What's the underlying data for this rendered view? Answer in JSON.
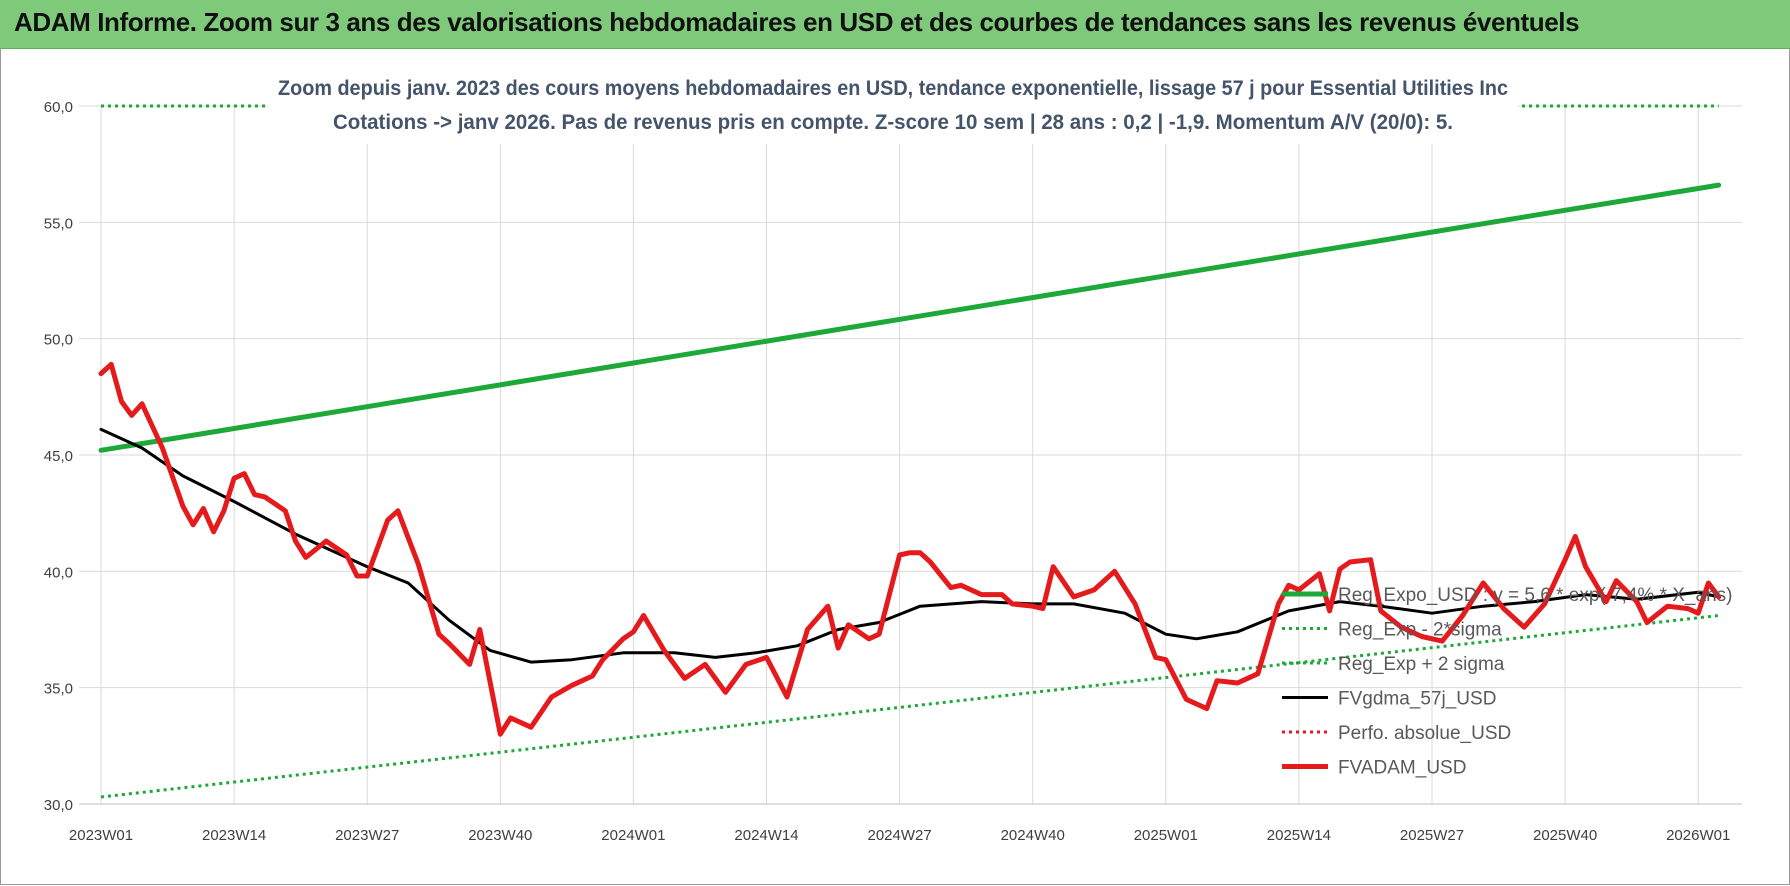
{
  "page_title": "ADAM Informe. Zoom sur 3 ans des valorisations hebdomadaires en USD et des courbes de tendances sans les revenus éventuels",
  "chart_data": {
    "type": "line",
    "title": "Zoom depuis janv. 2023 des cours moyens hebdomadaires en USD, tendance exponentielle, lissage 57 j pour Essential Utilities Inc",
    "subtitle": "Cotations -> janv 2026. Pas de revenus pris en compte. Z-score 10 sem | 28 ans : 0,2 | -1,9. Momentum A/V (20/0): 5.",
    "xlabel": "",
    "ylabel": "",
    "ylim": [
      30,
      60
    ],
    "y_ticks": [
      "30,0",
      "35,0",
      "40,0",
      "45,0",
      "50,0",
      "55,0",
      "60,0"
    ],
    "x_ticks": [
      "2023W01",
      "2023W14",
      "2023W27",
      "2023W40",
      "2024W01",
      "2024W14",
      "2024W27",
      "2024W40",
      "2025W01",
      "2025W14",
      "2025W27",
      "2025W40",
      "2026W01"
    ],
    "grid": "vertical and horizontal",
    "legend_position": "right",
    "series": [
      {
        "name": "Reg_Expo_USD : y = 5,6 * exp( 7,4% * X_ans)",
        "color": "#1fa83a",
        "style": "solid-thick",
        "x": [
          "2023W01",
          "2026W03"
        ],
        "values": [
          45.2,
          56.6
        ]
      },
      {
        "name": "Reg_Exp - 2*sigma",
        "color": "#1fa83a",
        "style": "dotted",
        "x": [
          "2023W01",
          "2026W03"
        ],
        "values": [
          30.3,
          38.1
        ]
      },
      {
        "name": "Reg_Exp + 2 sigma",
        "color": "#1fa83a",
        "style": "dotted",
        "x": [
          "2023W01",
          "2026W03"
        ],
        "values": [
          60.0,
          60.0
        ]
      },
      {
        "name": "FVgdma_57j_USD",
        "color": "#000000",
        "style": "solid",
        "x": [
          "2023W01",
          "2023W05",
          "2023W09",
          "2023W14",
          "2023W20",
          "2023W27",
          "2023W31",
          "2023W35",
          "2023W39",
          "2023W43",
          "2023W47",
          "2023W52",
          "2024W05",
          "2024W09",
          "2024W13",
          "2024W17",
          "2024W21",
          "2024W25",
          "2024W29",
          "2024W35",
          "2024W40",
          "2024W44",
          "2024W49",
          "2025W01",
          "2025W04",
          "2025W08",
          "2025W13",
          "2025W18",
          "2025W22",
          "2025W27",
          "2025W32",
          "2025W37",
          "2025W42",
          "2025W47",
          "2026W01",
          "2026W03"
        ],
        "values": [
          46.1,
          45.3,
          44.1,
          43.0,
          41.6,
          40.2,
          39.5,
          37.9,
          36.6,
          36.1,
          36.2,
          36.5,
          36.5,
          36.3,
          36.5,
          36.8,
          37.5,
          37.8,
          38.5,
          38.7,
          38.6,
          38.6,
          38.2,
          37.3,
          37.1,
          37.4,
          38.3,
          38.7,
          38.5,
          38.2,
          38.5,
          38.7,
          39.0,
          38.8,
          39.1,
          38.9
        ]
      },
      {
        "name": "Perfo. absolue_USD",
        "color": "#e41a1c",
        "style": "dotted",
        "x": [],
        "values": []
      },
      {
        "name": "FVADAM_USD",
        "color": "#e41a1c",
        "style": "solid-thick",
        "x": [
          "2023W01",
          "2023W02",
          "2023W03",
          "2023W04",
          "2023W05",
          "2023W07",
          "2023W09",
          "2023W10",
          "2023W11",
          "2023W12",
          "2023W13",
          "2023W14",
          "2023W15",
          "2023W16",
          "2023W17",
          "2023W19",
          "2023W20",
          "2023W21",
          "2023W23",
          "2023W25",
          "2023W26",
          "2023W27",
          "2023W29",
          "2023W30",
          "2023W32",
          "2023W34",
          "2023W35",
          "2023W37",
          "2023W38",
          "2023W40",
          "2023W41",
          "2023W43",
          "2023W45",
          "2023W47",
          "2023W49",
          "2023W50",
          "2023W52",
          "2024W01",
          "2024W02",
          "2024W04",
          "2024W06",
          "2024W08",
          "2024W10",
          "2024W12",
          "2024W14",
          "2024W16",
          "2024W18",
          "2024W20",
          "2024W21",
          "2024W22",
          "2024W24",
          "2024W25",
          "2024W27",
          "2024W28",
          "2024W29",
          "2024W30",
          "2024W32",
          "2024W33",
          "2024W35",
          "2024W37",
          "2024W38",
          "2024W40",
          "2024W41",
          "2024W42",
          "2024W44",
          "2024W46",
          "2024W48",
          "2024W50",
          "2024W52",
          "2025W01",
          "2025W03",
          "2025W05",
          "2025W06",
          "2025W08",
          "2025W10",
          "2025W12",
          "2025W13",
          "2025W14",
          "2025W16",
          "2025W17",
          "2025W18",
          "2025W19",
          "2025W21",
          "2025W22",
          "2025W24",
          "2025W26",
          "2025W28",
          "2025W30",
          "2025W32",
          "2025W34",
          "2025W36",
          "2025W38",
          "2025W40",
          "2025W41",
          "2025W42",
          "2025W44",
          "2025W45",
          "2025W47",
          "2025W48",
          "2025W50",
          "2025W52",
          "2026W01",
          "2026W02",
          "2026W03"
        ],
        "values": [
          48.5,
          48.9,
          47.3,
          46.7,
          47.2,
          45.3,
          42.8,
          42.0,
          42.7,
          41.7,
          42.6,
          44.0,
          44.2,
          43.3,
          43.2,
          42.6,
          41.3,
          40.6,
          41.3,
          40.7,
          39.8,
          39.8,
          42.2,
          42.6,
          40.3,
          37.3,
          36.9,
          36.0,
          37.5,
          33.0,
          33.7,
          33.3,
          34.6,
          35.1,
          35.5,
          36.2,
          37.1,
          37.4,
          38.1,
          36.6,
          35.4,
          36.0,
          34.8,
          36.0,
          36.3,
          34.6,
          37.5,
          38.5,
          36.7,
          37.7,
          37.1,
          37.3,
          40.7,
          40.8,
          40.8,
          40.4,
          39.3,
          39.4,
          39.0,
          39.0,
          38.6,
          38.5,
          38.4,
          40.2,
          38.9,
          39.2,
          40.0,
          38.6,
          36.3,
          36.2,
          34.5,
          34.1,
          35.3,
          35.2,
          35.6,
          38.6,
          39.4,
          39.2,
          39.9,
          38.3,
          40.1,
          40.4,
          40.5,
          38.3,
          37.6,
          37.2,
          37.0,
          38.1,
          39.5,
          38.4,
          37.6,
          38.6,
          40.5,
          41.5,
          40.2,
          38.7,
          39.6,
          38.7,
          37.8,
          38.5,
          38.4,
          38.2,
          39.5,
          38.9
        ]
      }
    ]
  }
}
